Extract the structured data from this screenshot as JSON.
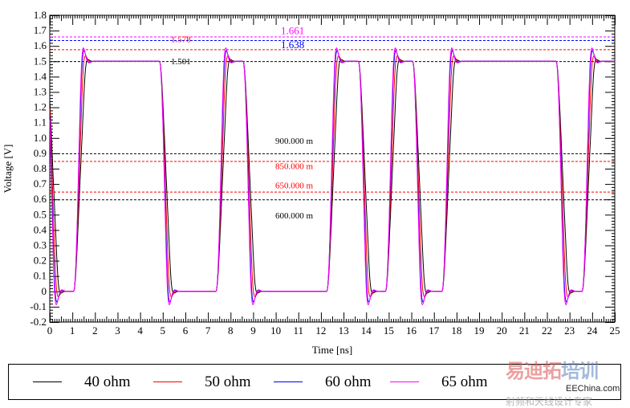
{
  "chart_data": {
    "type": "line",
    "xlabel": "Time [ns]",
    "ylabel": "Voltage [V]",
    "xlim": [
      0,
      25
    ],
    "ylim": [
      -0.2,
      1.8
    ],
    "xticks": [
      "0",
      "1",
      "2",
      "3",
      "4",
      "5",
      "6",
      "7",
      "8",
      "9",
      "10",
      "11",
      "12",
      "13",
      "14",
      "15",
      "16",
      "17",
      "18",
      "19",
      "20",
      "21",
      "22",
      "23",
      "24",
      "25"
    ],
    "yticks": [
      "-0.2",
      "-0.1",
      "0",
      "0.1",
      "0.2",
      "0.3",
      "0.4",
      "0.5",
      "0.6",
      "0.7",
      "0.8",
      "0.9",
      "1.0",
      "1.1",
      "1.2",
      "1.3",
      "1.4",
      "1.5",
      "1.6",
      "1.7",
      "1.8"
    ],
    "signal": {
      "high_level": 1.5,
      "low_level": 0.0,
      "initial_level": 1.5,
      "edges": [
        {
          "t": -0.15,
          "dir": "fall"
        },
        {
          "t": 1.05,
          "dir": "rise"
        },
        {
          "t": 4.85,
          "dir": "fall"
        },
        {
          "t": 7.35,
          "dir": "rise"
        },
        {
          "t": 8.55,
          "dir": "fall"
        },
        {
          "t": 12.25,
          "dir": "rise"
        },
        {
          "t": 13.65,
          "dir": "fall"
        },
        {
          "t": 14.85,
          "dir": "rise"
        },
        {
          "t": 16.05,
          "dir": "fall"
        },
        {
          "t": 17.35,
          "dir": "rise"
        },
        {
          "t": 22.4,
          "dir": "fall"
        },
        {
          "t": 23.55,
          "dir": "rise"
        }
      ],
      "ringing_period_ns": 0.5
    },
    "series": [
      {
        "name": "40 ohm",
        "color": "#000000",
        "overshoot": 0.03,
        "rise_ns": 0.45
      },
      {
        "name": "50 ohm",
        "color": "#ff0000",
        "overshoot": 0.065,
        "rise_ns": 0.35
      },
      {
        "name": "60 ohm",
        "color": "#0000ff",
        "overshoot": 0.1,
        "rise_ns": 0.3
      },
      {
        "name": "65 ohm",
        "color": "#ff00ff",
        "overshoot": 0.115,
        "rise_ns": 0.28
      }
    ],
    "markers": [
      {
        "value": 1.661,
        "label": "1.661",
        "color": "#ff00ff"
      },
      {
        "value": 1.638,
        "label": "1.638",
        "color": "#0000ff"
      },
      {
        "value": 1.578,
        "label": "1.578",
        "color": "#ff0000"
      },
      {
        "value": 1.501,
        "label": "1.501",
        "color": "#000000"
      },
      {
        "value": 0.9,
        "label": "900.000 m",
        "color": "#000000"
      },
      {
        "value": 0.85,
        "label": "850.000 m",
        "color": "#ff0000"
      },
      {
        "value": 0.65,
        "label": "650.000 m",
        "color": "#ff0000"
      },
      {
        "value": 0.6,
        "label": "600.000 m",
        "color": "#000000"
      }
    ],
    "legend": "bottom",
    "grid": false
  },
  "watermark": {
    "brand_a": "易迪拓",
    "brand_b": "培训",
    "site": "EEChina.com",
    "tagline": "射频和天线设计专家"
  }
}
